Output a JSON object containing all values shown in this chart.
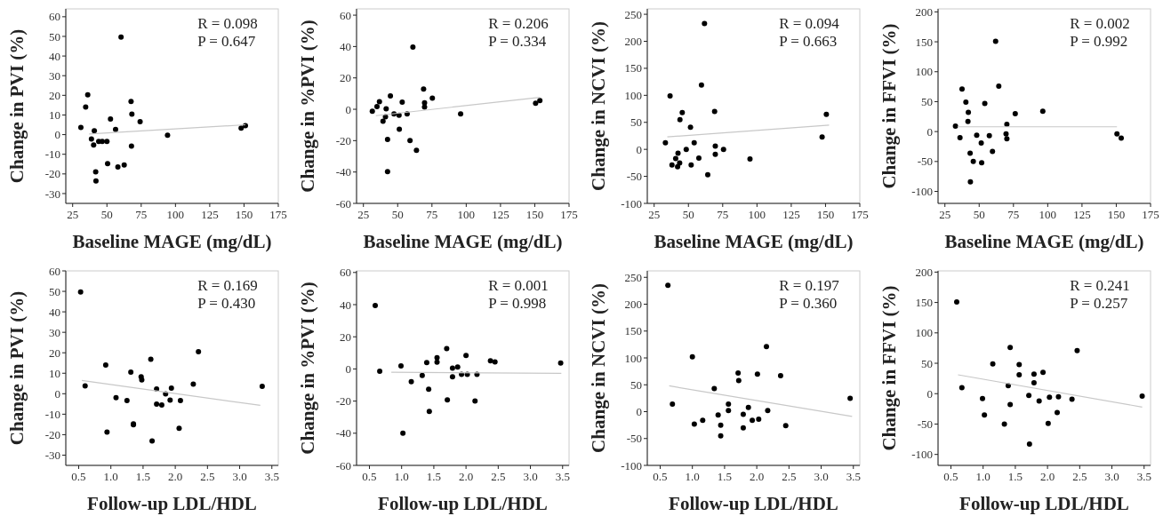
{
  "chart_data": [
    {
      "type": "scatter",
      "xlabel": "Baseline MAGE (mg/dL)",
      "ylabel": "Change in PVI (%)",
      "xlim": [
        20,
        175
      ],
      "ylim": [
        -35,
        64
      ],
      "xticks": [
        25,
        50,
        75,
        100,
        125,
        150,
        175
      ],
      "yticks": [
        -30,
        -20,
        -10,
        0,
        10,
        20,
        30,
        40,
        50,
        60
      ],
      "annotations": [
        "R = 0.098",
        "P = 0.647"
      ],
      "series": [
        {
          "type": "scatter",
          "marker": "circle",
          "color": "#000000",
          "x": [
            31,
            34.5,
            36,
            38.7,
            40.3,
            40.8,
            41.8,
            42,
            44,
            46.6,
            50,
            50.5,
            52.6,
            56.3,
            58,
            60.3,
            62.6,
            67.6,
            68.2,
            67.9,
            74.2,
            94.2,
            147.9,
            151
          ],
          "values": [
            3.7,
            14,
            20.3,
            -2.2,
            -5.3,
            2,
            -19,
            -23.6,
            -3.5,
            -3.5,
            -3.5,
            -14.8,
            7.9,
            2.6,
            -16.5,
            49.7,
            -15.4,
            16.9,
            10.4,
            -5.8,
            6.6,
            -0.3,
            3.3,
            4.5
          ]
        },
        {
          "type": "line",
          "color": "#c8c8c8",
          "x": [
            37,
            151
          ],
          "values": [
            0.3,
            5
          ]
        }
      ]
    },
    {
      "type": "scatter",
      "xlabel": "Baseline MAGE (mg/dL)",
      "ylabel": "Change in %PVI (%)",
      "xlim": [
        20,
        175
      ],
      "ylim": [
        -60,
        64
      ],
      "xticks": [
        25,
        50,
        75,
        100,
        125,
        150,
        175
      ],
      "yticks": [
        -60,
        -40,
        -20,
        0,
        20,
        40,
        60
      ],
      "annotations": [
        "R = 0.206",
        "P = 0.334"
      ],
      "series": [
        {
          "type": "scatter",
          "marker": "circle",
          "color": "#000000",
          "x": [
            31.5,
            34.9,
            36.7,
            39.3,
            41.1,
            41.6,
            42.6,
            42.6,
            44.7,
            47.3,
            51,
            51.2,
            53.3,
            56.9,
            59,
            61.1,
            63.7,
            68.9,
            69.6,
            69.6,
            75.3,
            95.9,
            150.6,
            153.7
          ],
          "values": [
            -1.3,
            1.7,
            4.8,
            -7.6,
            -4.8,
            0.3,
            -19.3,
            -39.7,
            8.5,
            -2.9,
            -3.8,
            -12.7,
            4.5,
            -2.9,
            -19.9,
            39.7,
            -26.2,
            12.9,
            4.1,
            1.5,
            7.1,
            -2.9,
            3.8,
            5.5
          ]
        },
        {
          "type": "line",
          "color": "#c8c8c8",
          "x": [
            34.1,
            153.7
          ],
          "values": [
            -4.1,
            7.6
          ]
        }
      ]
    },
    {
      "type": "scatter",
      "xlabel": "Baseline MAGE (mg/dL)",
      "ylabel": "Change in NCVI (%)",
      "xlim": [
        20,
        175
      ],
      "ylim": [
        -100,
        260
      ],
      "xticks": [
        25,
        50,
        75,
        100,
        125,
        150,
        175
      ],
      "yticks": [
        -100,
        -50,
        0,
        50,
        100,
        150,
        200,
        250
      ],
      "annotations": [
        "R = 0.094",
        "P = 0.663"
      ],
      "series": [
        {
          "type": "scatter",
          "marker": "circle",
          "color": "#000000",
          "x": [
            33.2,
            36.6,
            38,
            40.7,
            42.1,
            42.4,
            43.6,
            43.8,
            45.5,
            48.4,
            51.5,
            52,
            54.2,
            57.6,
            59.5,
            61.7,
            64.1,
            69.1,
            69.6,
            69.6,
            75.6,
            94.9,
            147.5,
            150.6
          ],
          "values": [
            12,
            99,
            -29,
            -17,
            -32,
            -7,
            -25,
            55,
            68,
            0,
            41,
            -29,
            12,
            -16,
            119,
            233,
            -47,
            70,
            6,
            -9,
            0,
            -18,
            23,
            65
          ]
        },
        {
          "type": "line",
          "color": "#c8c8c8",
          "x": [
            34.6,
            152.6
          ],
          "values": [
            23,
            45
          ]
        }
      ]
    },
    {
      "type": "scatter",
      "xlabel": "Baseline MAGE (mg/dL)",
      "ylabel": "Change in FFVI (%)",
      "xlim": [
        20,
        175
      ],
      "ylim": [
        -120,
        205
      ],
      "xticks": [
        25,
        50,
        75,
        100,
        125,
        150,
        175
      ],
      "yticks": [
        -100,
        -50,
        0,
        50,
        100,
        150,
        200
      ],
      "annotations": [
        "R = 0.002",
        "P = 0.992"
      ],
      "series": [
        {
          "type": "scatter",
          "marker": "circle",
          "color": "#000000",
          "x": [
            32.7,
            36,
            37.5,
            40.3,
            42.1,
            41.8,
            43.4,
            43.6,
            45.7,
            48.2,
            51.5,
            51.8,
            54.1,
            57.4,
            59.7,
            62,
            64.3,
            70.2,
            69.6,
            70.2,
            76.3,
            96.4,
            150.5,
            153.6
          ],
          "values": [
            9,
            -10,
            71,
            49,
            32,
            17,
            -36,
            -84,
            -50,
            -6,
            -19,
            -52,
            47,
            -7,
            -33,
            151,
            76,
            12,
            -4,
            -12,
            30,
            34,
            -4,
            -11
          ]
        },
        {
          "type": "line",
          "color": "#c8c8c8",
          "x": [
            34.2,
            150.5
          ],
          "values": [
            8,
            8
          ]
        }
      ]
    },
    {
      "type": "scatter",
      "xlabel": "Follow-up LDL/HDL",
      "ylabel": "Change in PVI (%)",
      "xlim": [
        0.3,
        3.6
      ],
      "ylim": [
        -35,
        60
      ],
      "xticks": [
        0.5,
        {
          "value": 1,
          "label": "1.0"
        },
        1.5,
        {
          "value": 2,
          "label": "2.0"
        },
        2.5,
        {
          "value": 3,
          "label": "3.0"
        },
        3.5
      ],
      "yticks": [
        -30,
        -20,
        -10,
        0,
        10,
        20,
        30,
        40,
        50,
        60
      ],
      "annotations": [
        "R = 0.169",
        "P = 0.430"
      ],
      "series": [
        {
          "type": "scatter",
          "marker": "circle",
          "color": "#000000",
          "x": [
            0.53,
            0.6,
            0.92,
            0.94,
            1.08,
            1.25,
            1.31,
            1.35,
            1.35,
            1.47,
            1.48,
            1.62,
            1.64,
            1.71,
            1.71,
            1.79,
            1.85,
            1.92,
            1.94,
            2.06,
            2.08,
            2.28,
            2.36,
            3.35
          ],
          "values": [
            49.7,
            3.8,
            14,
            -18.7,
            -1.9,
            -3.3,
            10.5,
            -14.7,
            -15.2,
            8.3,
            6.8,
            16.8,
            -23.1,
            2.3,
            -5.1,
            -5.5,
            -0.1,
            -3.1,
            2.7,
            -16.9,
            -3.3,
            4.7,
            20.5,
            3.6
          ]
        },
        {
          "type": "line",
          "color": "#c8c8c8",
          "x": [
            0.55,
            3.32
          ],
          "values": [
            6.5,
            -5.7
          ]
        }
      ]
    },
    {
      "type": "scatter",
      "xlabel": "Follow-up LDL/HDL",
      "ylabel": "Change in %PVI (%)",
      "xlim": [
        0.3,
        3.6
      ],
      "ylim": [
        -60,
        61
      ],
      "xticks": [
        0.5,
        {
          "value": 1,
          "label": "1.0"
        },
        1.5,
        {
          "value": 2,
          "label": "2.0"
        },
        2.5,
        {
          "value": 3,
          "label": "3.0"
        },
        3.5
      ],
      "yticks": [
        -60,
        -40,
        -20,
        0,
        20,
        40,
        60
      ],
      "annotations": [
        "R = 0.001",
        "P = 0.998"
      ],
      "series": [
        {
          "type": "scatter",
          "marker": "circle",
          "color": "#000000",
          "x": [
            0.59,
            0.66,
            0.99,
            1.02,
            1.15,
            1.32,
            1.39,
            1.42,
            1.43,
            1.55,
            1.55,
            1.7,
            1.71,
            1.79,
            1.79,
            1.87,
            1.93,
            2,
            2.02,
            2.14,
            2.17,
            2.38,
            2.45,
            3.47
          ],
          "values": [
            39.5,
            -1.4,
            1.9,
            -40,
            -7.9,
            -4,
            4,
            -12.6,
            -26.5,
            7,
            4.2,
            12.6,
            -19.3,
            0.5,
            -4.9,
            1.2,
            -3.3,
            8.4,
            -3.3,
            -20,
            -3.3,
            5.1,
            4.4,
            3.7
          ]
        },
        {
          "type": "line",
          "color": "#c8c8c8",
          "x": [
            0.84,
            3.48
          ],
          "values": [
            -2.1,
            -2.8
          ]
        }
      ]
    },
    {
      "type": "scatter",
      "xlabel": "Follow-up LDL/HDL",
      "ylabel": "Change in NCVI (%)",
      "xlim": [
        0.3,
        3.6
      ],
      "ylim": [
        -100,
        262
      ],
      "xticks": [
        0.5,
        {
          "value": 1,
          "label": "1.0"
        },
        1.5,
        {
          "value": 2,
          "label": "2.0"
        },
        2.5,
        {
          "value": 3,
          "label": "3.0"
        },
        3.5
      ],
      "yticks": [
        -100,
        -50,
        0,
        50,
        100,
        150,
        200,
        250
      ],
      "annotations": [
        "R = 0.197",
        "P = 0.360"
      ],
      "series": [
        {
          "type": "scatter",
          "marker": "circle",
          "color": "#000000",
          "x": [
            0.62,
            0.69,
            1,
            1.03,
            1.16,
            1.34,
            1.4,
            1.44,
            1.44,
            1.56,
            1.56,
            1.71,
            1.72,
            1.79,
            1.79,
            1.87,
            1.93,
            2.01,
            2.03,
            2.15,
            2.17,
            2.37,
            2.45,
            3.45
          ],
          "values": [
            235,
            14,
            102,
            -23,
            -16,
            43,
            -6,
            -25,
            -45,
            14,
            2,
            72,
            58,
            -5,
            -30,
            8,
            -16,
            70,
            -14,
            121,
            2,
            67,
            -26,
            25
          ]
        },
        {
          "type": "line",
          "color": "#c8c8c8",
          "x": [
            0.64,
            3.48
          ],
          "values": [
            48,
            -9
          ]
        }
      ]
    },
    {
      "type": "scatter",
      "xlabel": "Follow-up LDL/HDL",
      "ylabel": "Change in FFVI (%)",
      "xlim": [
        0.3,
        3.6
      ],
      "ylim": [
        -118,
        202
      ],
      "xticks": [
        0.5,
        {
          "value": 1,
          "label": "1.0"
        },
        1.5,
        {
          "value": 2,
          "label": "2.0"
        },
        2.5,
        {
          "value": 3,
          "label": "3.0"
        },
        3.5
      ],
      "yticks": [
        -100,
        -50,
        0,
        50,
        100,
        150,
        200
      ],
      "annotations": [
        "R = 0.241",
        "P = 0.257"
      ],
      "series": [
        {
          "type": "scatter",
          "marker": "circle",
          "color": "#000000",
          "x": [
            0.59,
            0.67,
            0.99,
            1.02,
            1.15,
            1.33,
            1.39,
            1.42,
            1.42,
            1.56,
            1.56,
            1.71,
            1.72,
            1.79,
            1.79,
            1.87,
            1.93,
            2.01,
            2.03,
            2.15,
            2.17,
            2.38,
            2.46,
            3.47
          ],
          "values": [
            151,
            10,
            -8,
            -35,
            49,
            -50,
            13,
            76,
            -18,
            48,
            31,
            -3,
            -83,
            32,
            18,
            -12,
            35,
            -49,
            -6,
            -31,
            -5,
            -9,
            71,
            -4
          ]
        },
        {
          "type": "line",
          "color": "#c8c8c8",
          "x": [
            0.61,
            3.47
          ],
          "values": [
            31,
            -22
          ]
        }
      ]
    }
  ]
}
